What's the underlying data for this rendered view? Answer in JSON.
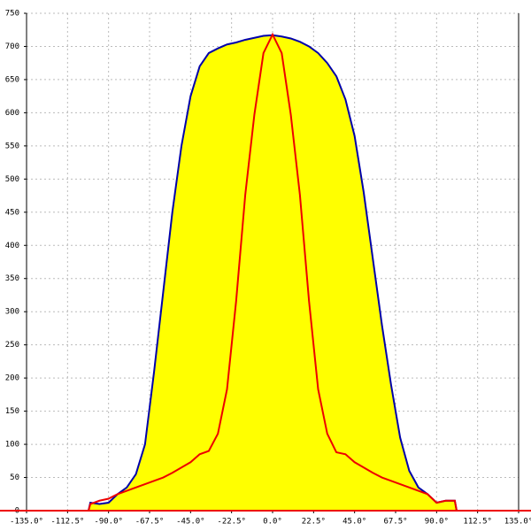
{
  "chart_data": {
    "type": "area-line",
    "xlim": [
      -135,
      135
    ],
    "ylim": [
      0,
      750
    ],
    "xticks": [
      {
        "value": -135,
        "label": "-135.0°"
      },
      {
        "value": -112.5,
        "label": "-112.5°"
      },
      {
        "value": -90,
        "label": "-90.0°"
      },
      {
        "value": -67.5,
        "label": "-67.5°"
      },
      {
        "value": -45,
        "label": "-45.0°"
      },
      {
        "value": -22.5,
        "label": "-22.5°"
      },
      {
        "value": 0,
        "label": "0.0°"
      },
      {
        "value": 22.5,
        "label": "22.5°"
      },
      {
        "value": 45,
        "label": "45.0°"
      },
      {
        "value": 67.5,
        "label": "67.5°"
      },
      {
        "value": 90,
        "label": "90.0°"
      },
      {
        "value": 112.5,
        "label": "112.5°"
      },
      {
        "value": 135,
        "label": "135.0°"
      }
    ],
    "yticks": [
      0,
      50,
      100,
      150,
      200,
      250,
      300,
      350,
      400,
      450,
      500,
      550,
      600,
      650,
      700,
      750
    ],
    "grid": true,
    "series": [
      {
        "color": "#0000aa",
        "fill": "#ffff00",
        "x": [
          -101,
          -100,
          -95,
          -90,
          -85,
          -80,
          -75,
          -70,
          -65,
          -60,
          -55,
          -50,
          -45,
          -40,
          -35,
          -30,
          -25,
          -20,
          -15,
          -10,
          -5,
          0,
          5,
          10,
          15,
          20,
          25,
          30,
          35,
          40,
          45,
          50,
          55,
          60,
          65,
          70,
          75,
          80,
          85,
          90,
          95,
          100,
          101
        ],
        "values": [
          0,
          12,
          10,
          12,
          25,
          35,
          55,
          100,
          210,
          330,
          450,
          550,
          625,
          670,
          690,
          697,
          703,
          706,
          710,
          713,
          716,
          717,
          715,
          712,
          707,
          700,
          690,
          675,
          655,
          620,
          565,
          480,
          380,
          280,
          190,
          110,
          60,
          35,
          25,
          12,
          15,
          15,
          0
        ]
      },
      {
        "color": "#ee0000",
        "x": [
          -101,
          -100,
          -95,
          -90,
          -85,
          -80,
          -75,
          -70,
          -65,
          -60,
          -55,
          -50,
          -45,
          -40,
          -35,
          -30,
          -25,
          -20,
          -15,
          -10,
          -5,
          0,
          5,
          10,
          15,
          20,
          25,
          30,
          35,
          40,
          45,
          50,
          55,
          60,
          65,
          70,
          75,
          80,
          85,
          90,
          95,
          100,
          101
        ],
        "values": [
          0,
          10,
          15,
          18,
          25,
          30,
          35,
          40,
          45,
          50,
          57,
          65,
          73,
          85,
          90,
          116,
          183,
          316,
          476,
          597,
          690,
          718,
          690,
          597,
          476,
          316,
          183,
          116,
          88,
          85,
          73,
          65,
          57,
          50,
          45,
          40,
          35,
          30,
          25,
          12,
          15,
          15,
          0
        ]
      }
    ]
  }
}
